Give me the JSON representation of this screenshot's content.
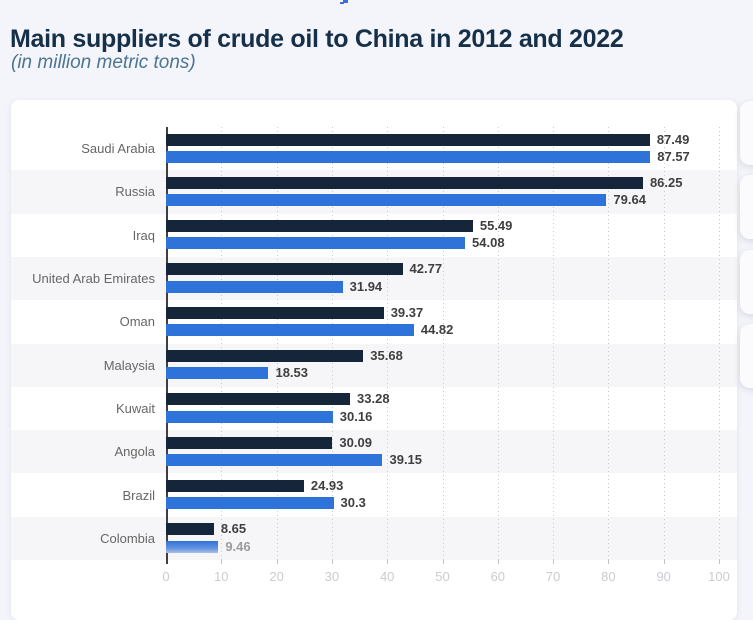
{
  "page": {
    "title": "Main suppliers of crude oil to China in 2012 and 2022",
    "subtitle": "(in million metric tons)"
  },
  "colors": {
    "page_bg": "#f4f5fa",
    "card_bg": "#ffffff",
    "row_band": "#f6f6f8",
    "series_2012": "#15263b",
    "series_2022": "#2e73d9",
    "muted_bar_gradient_end": "#a8c1ec",
    "title_text": "#16304a",
    "subtitle_text": "#4d7490",
    "category_text": "#666666",
    "value_text": "#3f3f3f",
    "value_text_muted": "#9b9b9b",
    "axis_line": "#3f3f3f",
    "gridline": "#c9c9c9",
    "tick_label": "#caccd2"
  },
  "chart_data": {
    "type": "bar",
    "orientation": "horizontal",
    "title": "Main suppliers of crude oil to China in 2012 and 2022",
    "unit": "million metric tons",
    "categories": [
      "Saudi Arabia",
      "Russia",
      "Iraq",
      "United Arab Emirates",
      "Oman",
      "Malaysia",
      "Kuwait",
      "Angola",
      "Brazil",
      "Colombia"
    ],
    "series": [
      {
        "name": "2012",
        "color": "#15263b",
        "values": [
          87.49,
          86.25,
          55.49,
          42.77,
          39.37,
          35.68,
          33.28,
          30.09,
          24.93,
          8.65
        ]
      },
      {
        "name": "2022",
        "color": "#2e73d9",
        "values": [
          87.57,
          79.64,
          54.08,
          31.94,
          44.82,
          18.53,
          30.16,
          39.15,
          30.3,
          9.46
        ]
      }
    ],
    "value_labels": "end-of-bar",
    "muted_value": {
      "category": "Colombia",
      "series": "2022"
    },
    "xlabel": "",
    "ylabel": "",
    "xlim": [
      0,
      100
    ],
    "xticks": [
      0,
      10,
      20,
      30,
      40,
      50,
      60,
      70,
      80,
      90,
      100
    ],
    "grid": "dotted-vertical",
    "legend": "none",
    "row_striping": "alternate-light-gray"
  }
}
